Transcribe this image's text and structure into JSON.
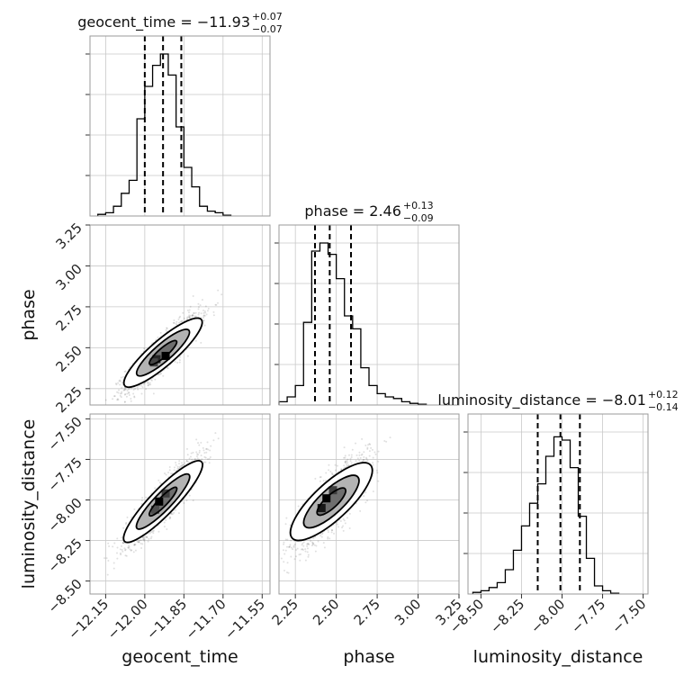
{
  "chart_data": {
    "type": "corner",
    "parameters": [
      "geocent_time",
      "phase",
      "luminosity_distance"
    ],
    "axis_labels": [
      "geocent_time",
      "phase",
      "luminosity_distance"
    ],
    "ranges": {
      "geocent_time": [
        -12.21,
        -11.52
      ],
      "phase": [
        2.15,
        3.25
      ],
      "luminosity_distance": [
        -8.58,
        -7.47
      ]
    },
    "ticks": {
      "geocent_time": [
        -12.15,
        -12.0,
        -11.85,
        -11.7,
        -11.55
      ],
      "phase": [
        2.25,
        2.5,
        2.75,
        3.0,
        3.25
      ],
      "luminosity_distance": [
        -8.5,
        -8.25,
        -8.0,
        -7.75,
        -7.5
      ]
    },
    "tick_labels": {
      "geocent_time": [
        "−12.15",
        "−12.00",
        "−11.85",
        "−11.70",
        "−11.55"
      ],
      "phase": [
        "2.25",
        "2.50",
        "2.75",
        "3.00",
        "3.25"
      ],
      "luminosity_distance": [
        "−8.50",
        "−8.25",
        "−8.00",
        "−7.75",
        "−7.50"
      ]
    },
    "titles": [
      {
        "param": "geocent_time",
        "text": "geocent_time = −11.93",
        "plus": "+0.07",
        "minus": "−0.07"
      },
      {
        "param": "phase",
        "text": "phase = 2.46",
        "plus": "+0.13",
        "minus": "−0.09"
      },
      {
        "param": "luminosity_distance",
        "text": "luminosity_distance = −8.01",
        "plus": "+0.12",
        "minus": "−0.14"
      }
    ],
    "quantiles": {
      "geocent_time": [
        -12.0,
        -11.93,
        -11.86
      ],
      "phase": [
        2.37,
        2.46,
        2.59
      ],
      "luminosity_distance": [
        -8.15,
        -8.01,
        -7.89
      ]
    },
    "histograms": {
      "geocent_time": {
        "edges": [
          -12.18,
          -12.15,
          -12.12,
          -12.09,
          -12.06,
          -12.03,
          -12.0,
          -11.97,
          -11.94,
          -11.91,
          -11.88,
          -11.85,
          -11.82,
          -11.79,
          -11.76,
          -11.73,
          -11.7,
          -11.67
        ],
        "counts": [
          0.01,
          0.02,
          0.06,
          0.14,
          0.22,
          0.6,
          0.8,
          0.93,
          1.0,
          0.87,
          0.55,
          0.3,
          0.18,
          0.06,
          0.03,
          0.02,
          0.005
        ]
      },
      "phase": {
        "edges": [
          2.15,
          2.2,
          2.25,
          2.3,
          2.35,
          2.4,
          2.45,
          2.5,
          2.55,
          2.6,
          2.65,
          2.7,
          2.75,
          2.8,
          2.85,
          2.9,
          2.95,
          3.0,
          3.05
        ],
        "counts": [
          0.02,
          0.05,
          0.12,
          0.51,
          0.95,
          1.0,
          0.93,
          0.78,
          0.55,
          0.47,
          0.23,
          0.12,
          0.07,
          0.05,
          0.04,
          0.02,
          0.01,
          0.005
        ]
      },
      "luminosity_distance": {
        "edges": [
          -8.55,
          -8.5,
          -8.45,
          -8.4,
          -8.35,
          -8.3,
          -8.25,
          -8.2,
          -8.15,
          -8.1,
          -8.05,
          -8.0,
          -7.95,
          -7.9,
          -7.85,
          -7.8,
          -7.75,
          -7.7,
          -7.65
        ],
        "counts": [
          0.01,
          0.02,
          0.04,
          0.07,
          0.15,
          0.27,
          0.42,
          0.56,
          0.68,
          0.85,
          0.97,
          0.95,
          0.78,
          0.48,
          0.22,
          0.05,
          0.02,
          0.005
        ]
      }
    },
    "pairs": [
      {
        "x": "geocent_time",
        "y": "phase",
        "mean": [
          -11.93,
          2.47
        ],
        "sd": [
          0.07,
          0.11
        ],
        "corr": 0.88,
        "peak_cells": [
          [
            -11.92,
            2.45,
            1.0
          ],
          [
            -11.955,
            2.43,
            0.75
          ],
          [
            -11.965,
            2.41,
            0.55
          ]
        ]
      },
      {
        "x": "geocent_time",
        "y": "luminosity_distance",
        "mean": [
          -11.93,
          -8.01
        ],
        "sd": [
          0.07,
          0.13
        ],
        "corr": 0.9,
        "peak_cells": [
          [
            -11.945,
            -8.01,
            1.0
          ],
          [
            -11.92,
            -7.96,
            0.6
          ],
          [
            -11.96,
            -8.06,
            0.5
          ]
        ]
      },
      {
        "x": "phase",
        "y": "luminosity_distance",
        "mean": [
          2.47,
          -8.01
        ],
        "sd": [
          0.11,
          0.13
        ],
        "corr": 0.8,
        "peak_cells": [
          [
            2.44,
            -7.99,
            1.0
          ],
          [
            2.41,
            -8.05,
            0.85
          ],
          [
            2.48,
            -7.94,
            0.6
          ]
        ]
      }
    ]
  }
}
